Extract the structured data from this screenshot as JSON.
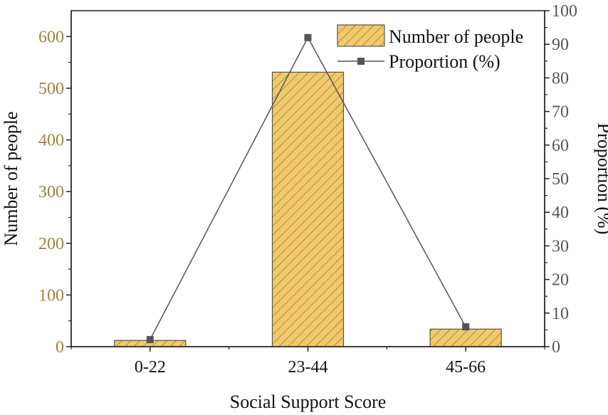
{
  "chart_data": {
    "type": "bar",
    "categories": [
      "0-22",
      "23-44",
      "45-66"
    ],
    "series": [
      {
        "name": "Number of people",
        "type": "bar",
        "axis": "left",
        "values": [
          12,
          531,
          34
        ]
      },
      {
        "name": "Proportion (%)",
        "type": "line",
        "axis": "right",
        "values": [
          2.1,
          92.0,
          5.9
        ]
      }
    ],
    "xlabel": "Social Support Score",
    "ylabel": "Number of people",
    "ylabel_right": "Proportion (%)",
    "ylim": [
      0,
      650
    ],
    "ylim_right": [
      0,
      100
    ],
    "yticks": [
      0,
      100,
      200,
      300,
      400,
      500,
      600
    ],
    "yticks_right": [
      0,
      10,
      20,
      30,
      40,
      50,
      60,
      70,
      80,
      90,
      100
    ],
    "legend_position": "top-right",
    "grid": false,
    "colors": {
      "bar_fill": "#f2c96a",
      "bar_hatch": "#7a6630",
      "bar_edge": "#555555",
      "line": "#555555",
      "left_axis": "#9c8440",
      "right_axis": "#555555"
    }
  }
}
